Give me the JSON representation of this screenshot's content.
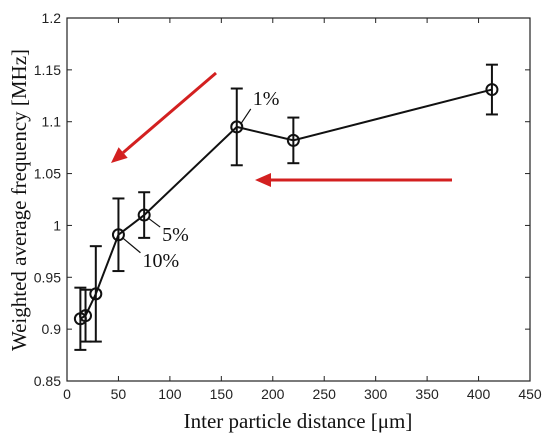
{
  "chart_data": {
    "type": "line",
    "title": "",
    "xlabel": "Inter particle distance [μm]",
    "ylabel": "Weighted average frequency [MHz]",
    "xlim": [
      0,
      450
    ],
    "ylim": [
      0.85,
      1.2
    ],
    "xticks": [
      "0",
      "50",
      "100",
      "150",
      "200",
      "250",
      "300",
      "350",
      "400",
      "450"
    ],
    "yticks": [
      "0.85",
      "0.9",
      "0.95",
      "1",
      "1.05",
      "1.1",
      "1.15",
      "1.2"
    ],
    "grid": false,
    "legend": "none",
    "series": [
      {
        "x": [
          13,
          18,
          28,
          50,
          75,
          165,
          220,
          413
        ],
        "y": [
          0.91,
          0.913,
          0.934,
          0.991,
          1.01,
          1.095,
          1.082,
          1.131
        ],
        "err": [
          0.03,
          0.025,
          0.046,
          0.035,
          0.022,
          0.037,
          0.022,
          0.024
        ]
      }
    ],
    "annotations": [
      {
        "text": "1%",
        "x": 165,
        "y": 1.095
      },
      {
        "text": "5%",
        "x": 75,
        "y": 1.01
      },
      {
        "text": "10%",
        "x": 50,
        "y": 0.991
      }
    ],
    "arrow_color": "#d32020",
    "line_color": "#111111"
  }
}
